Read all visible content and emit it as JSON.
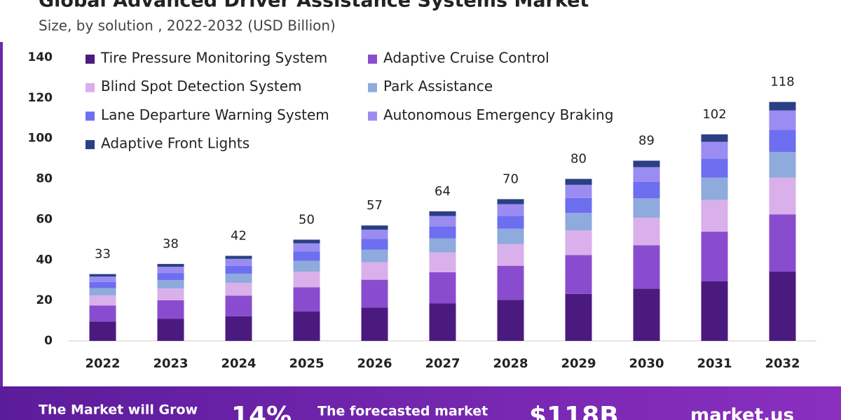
{
  "chart_data": {
    "type": "stacked_bar",
    "title": "Global Advanced Driver Assistance Systems Market",
    "subtitle": "Size, by solution , 2022-2032 (USD Billion)",
    "categories": [
      "2022",
      "2023",
      "2024",
      "2025",
      "2026",
      "2027",
      "2028",
      "2029",
      "2030",
      "2031",
      "2032"
    ],
    "series": [
      {
        "name": "Tire Pressure Monitoring System",
        "color": "#4b1a7f",
        "values": [
          9.6,
          11.0,
          12.2,
          14.5,
          16.5,
          18.5,
          20.3,
          23.2,
          25.8,
          29.5,
          34.2
        ]
      },
      {
        "name": "Adaptive Cruise Control",
        "color": "#8a4ccf",
        "values": [
          7.9,
          9.1,
          10.1,
          12.0,
          13.7,
          15.4,
          16.8,
          19.2,
          21.4,
          24.5,
          28.3
        ]
      },
      {
        "name": "Blind Spot Detection System",
        "color": "#d9b0ea",
        "values": [
          5.0,
          5.8,
          6.4,
          7.7,
          8.7,
          9.8,
          10.7,
          12.2,
          13.6,
          15.6,
          18.1
        ]
      },
      {
        "name": "Park Assistance",
        "color": "#8faadc",
        "values": [
          3.6,
          4.1,
          4.5,
          5.4,
          6.2,
          6.9,
          7.6,
          8.6,
          9.6,
          11.0,
          12.7
        ]
      },
      {
        "name": "Lane Departure Warning System",
        "color": "#6e6ef0",
        "values": [
          3.0,
          3.5,
          3.9,
          4.6,
          5.2,
          5.9,
          6.4,
          7.4,
          8.2,
          9.4,
          10.9
        ]
      },
      {
        "name": "Autonomous Emergency Braking",
        "color": "#9a8cf0",
        "values": [
          2.7,
          3.1,
          3.4,
          4.0,
          4.6,
          5.2,
          5.7,
          6.5,
          7.2,
          8.3,
          9.6
        ]
      },
      {
        "name": "Adaptive Front Lights",
        "color": "#2b3f84",
        "values": [
          1.2,
          1.4,
          1.5,
          1.8,
          2.1,
          2.3,
          2.5,
          2.9,
          3.2,
          3.7,
          4.2
        ]
      }
    ],
    "totals": [
      33,
      38,
      42,
      50,
      57,
      64,
      70,
      80,
      89,
      102,
      118
    ],
    "ylim": [
      0,
      140
    ],
    "yticks": [
      0,
      20,
      40,
      60,
      80,
      100,
      120,
      140
    ],
    "grid": false
  },
  "footer": {
    "grow_text": "The Market will Grow",
    "cagr": "14%",
    "forecast_text": "The forecasted market",
    "forecast_value": "$118B",
    "brand": "market.us"
  }
}
